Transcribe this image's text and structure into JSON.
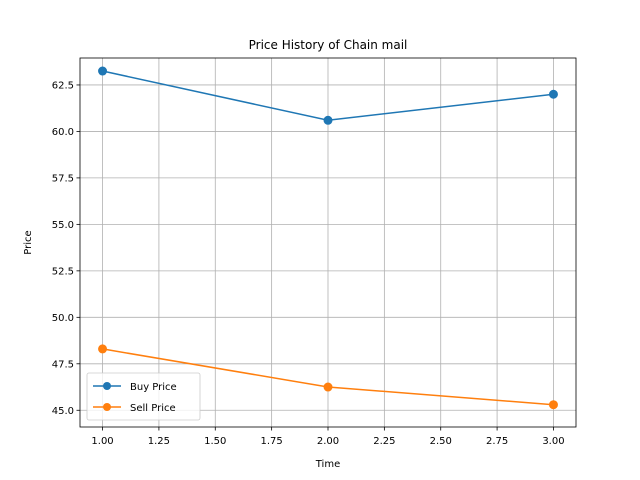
{
  "chart_data": {
    "type": "line",
    "title": "Price History of Chain mail",
    "xlabel": "Time",
    "ylabel": "Price",
    "x": [
      1.0,
      2.0,
      3.0
    ],
    "series": [
      {
        "name": "Buy Price",
        "values": [
          63.25,
          60.6,
          62.0
        ],
        "color": "#1f77b4"
      },
      {
        "name": "Sell Price",
        "values": [
          48.3,
          46.25,
          45.3
        ],
        "color": "#ff7f0e"
      }
    ],
    "xlim": [
      0.9,
      3.1
    ],
    "ylim": [
      44.1,
      63.95
    ],
    "xticks": [
      "1.00",
      "1.25",
      "1.50",
      "1.75",
      "2.00",
      "2.25",
      "2.50",
      "2.75",
      "3.00"
    ],
    "yticks": [
      "45.0",
      "47.5",
      "50.0",
      "52.5",
      "55.0",
      "57.5",
      "60.0",
      "62.5"
    ],
    "grid": true,
    "legend_position": "lower-left",
    "marker": "circle"
  }
}
